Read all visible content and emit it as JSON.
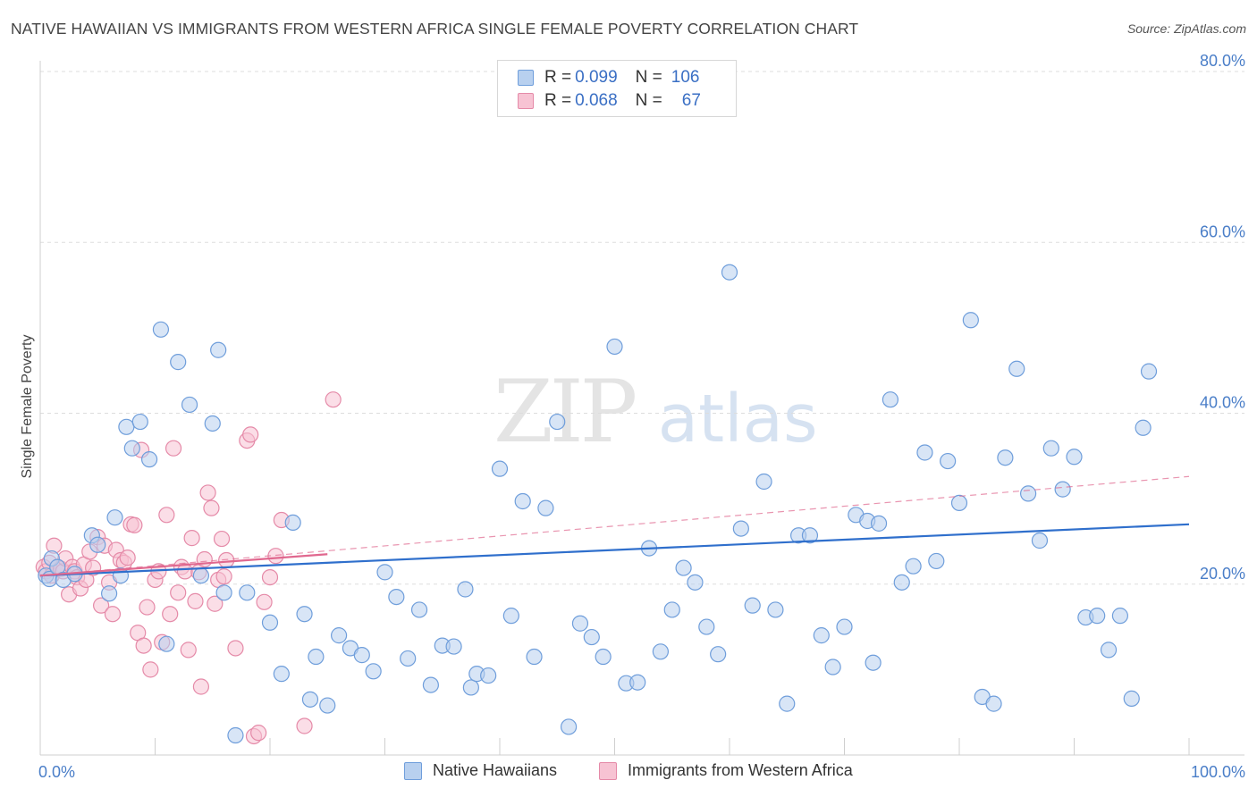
{
  "header": {
    "title": "NATIVE HAWAIIAN VS IMMIGRANTS FROM WESTERN AFRICA SINGLE FEMALE POVERTY CORRELATION CHART",
    "source": "Source: ZipAtlas.com"
  },
  "watermark": {
    "zip": "ZIP",
    "atlas": "atlas"
  },
  "legend_top": {
    "rows": [
      {
        "r_label": "R =",
        "r_value": "0.099",
        "n_label": "N =",
        "n_value": "106"
      },
      {
        "r_label": "R =",
        "r_value": "0.068",
        "n_label": "N =",
        "n_value": "67"
      }
    ]
  },
  "legend_bottom": {
    "items": [
      {
        "label": "Native Hawaiians"
      },
      {
        "label": "Immigrants from Western Africa"
      }
    ]
  },
  "colors": {
    "blue_fill": "#b8d0ef",
    "blue_stroke": "#6f9edb",
    "blue_line": "#2f6fcc",
    "pink_fill": "#f7c3d3",
    "pink_stroke": "#e58aa8",
    "pink_line": "#e0688f",
    "tick": "#4a7ec8",
    "grid": "#dddddd"
  },
  "chart_data": {
    "type": "scatter",
    "title": "NATIVE HAWAIIAN VS IMMIGRANTS FROM WESTERN AFRICA SINGLE FEMALE POVERTY CORRELATION CHART",
    "xlabel": "",
    "ylabel": "Single Female Poverty",
    "xlim": [
      0,
      100
    ],
    "ylim": [
      0,
      80
    ],
    "x_tick_labels": [
      "0.0%",
      "100.0%"
    ],
    "y_ticks": [
      20,
      40,
      60,
      80
    ],
    "y_tick_labels": [
      "20.0%",
      "40.0%",
      "60.0%",
      "80.0%"
    ],
    "grid": "horizontal dashed",
    "legend_placement": "top-center and bottom",
    "series": [
      {
        "name": "Native Hawaiians",
        "r": 0.099,
        "n": 106,
        "trend": {
          "x": [
            0,
            100
          ],
          "y": [
            21.0,
            27.0
          ],
          "style": "solid"
        },
        "points": [
          [
            0.5,
            21
          ],
          [
            0.8,
            20.6
          ],
          [
            1,
            23
          ],
          [
            1.5,
            22
          ],
          [
            2,
            20.5
          ],
          [
            3,
            21.2
          ],
          [
            4.5,
            25.7
          ],
          [
            5,
            24.6
          ],
          [
            6,
            18.9
          ],
          [
            6.5,
            27.8
          ],
          [
            7,
            21
          ],
          [
            7.5,
            38.4
          ],
          [
            8,
            35.9
          ],
          [
            8.7,
            39
          ],
          [
            9.5,
            34.6
          ],
          [
            10.5,
            49.8
          ],
          [
            11,
            13
          ],
          [
            12,
            46
          ],
          [
            13,
            41
          ],
          [
            14,
            21
          ],
          [
            15,
            38.8
          ],
          [
            15.5,
            47.4
          ],
          [
            16,
            19
          ],
          [
            17,
            2.3
          ],
          [
            18,
            19
          ],
          [
            20,
            15.5
          ],
          [
            21,
            9.5
          ],
          [
            22,
            27.2
          ],
          [
            23,
            16.5
          ],
          [
            23.5,
            6.5
          ],
          [
            24,
            11.5
          ],
          [
            25,
            5.8
          ],
          [
            26,
            14
          ],
          [
            27,
            12.5
          ],
          [
            28,
            11.7
          ],
          [
            29,
            9.8
          ],
          [
            30,
            21.4
          ],
          [
            31,
            18.5
          ],
          [
            32,
            11.3
          ],
          [
            33,
            17
          ],
          [
            34,
            8.2
          ],
          [
            35,
            12.8
          ],
          [
            36,
            12.7
          ],
          [
            37,
            19.4
          ],
          [
            37.5,
            7.9
          ],
          [
            38,
            9.5
          ],
          [
            39,
            9.3
          ],
          [
            40,
            33.5
          ],
          [
            41,
            16.3
          ],
          [
            42,
            29.7
          ],
          [
            43,
            11.5
          ],
          [
            44,
            28.9
          ],
          [
            45,
            39
          ],
          [
            46,
            3.3
          ],
          [
            47,
            15.4
          ],
          [
            48,
            13.8
          ],
          [
            49,
            11.5
          ],
          [
            50,
            47.8
          ],
          [
            51,
            8.4
          ],
          [
            52,
            8.5
          ],
          [
            53,
            24.2
          ],
          [
            54,
            12.1
          ],
          [
            55,
            17
          ],
          [
            56,
            21.9
          ],
          [
            57,
            20.2
          ],
          [
            58,
            15
          ],
          [
            59,
            11.8
          ],
          [
            60,
            56.5
          ],
          [
            61,
            26.5
          ],
          [
            62,
            17.5
          ],
          [
            63,
            32
          ],
          [
            64,
            17
          ],
          [
            65,
            6
          ],
          [
            66,
            25.7
          ],
          [
            67,
            25.7
          ],
          [
            68,
            14
          ],
          [
            69,
            10.3
          ],
          [
            70,
            15
          ],
          [
            71,
            28.1
          ],
          [
            72,
            27.4
          ],
          [
            72.5,
            10.8
          ],
          [
            73,
            27.1
          ],
          [
            74,
            41.6
          ],
          [
            75,
            20.2
          ],
          [
            76,
            22.1
          ],
          [
            77,
            35.4
          ],
          [
            78,
            22.7
          ],
          [
            79,
            34.4
          ],
          [
            80,
            29.5
          ],
          [
            81,
            50.9
          ],
          [
            82,
            6.8
          ],
          [
            83,
            6
          ],
          [
            84,
            34.8
          ],
          [
            85,
            45.2
          ],
          [
            86,
            30.6
          ],
          [
            87,
            25.1
          ],
          [
            88,
            35.9
          ],
          [
            89,
            31.1
          ],
          [
            90,
            34.9
          ],
          [
            91,
            16.1
          ],
          [
            92,
            16.3
          ],
          [
            93,
            12.3
          ],
          [
            94,
            16.3
          ],
          [
            95,
            6.6
          ],
          [
            96,
            38.3
          ],
          [
            96.5,
            44.9
          ]
        ]
      },
      {
        "name": "Immigrants from Western Africa",
        "r": 0.068,
        "n": 67,
        "trend_solid": {
          "x": [
            0,
            25
          ],
          "y": [
            21.0,
            23.5
          ]
        },
        "trend_dashed": {
          "x": [
            0,
            100
          ],
          "y": [
            21.0,
            32.6
          ]
        },
        "points": [
          [
            0.3,
            22
          ],
          [
            0.5,
            21.5
          ],
          [
            0.8,
            22.5
          ],
          [
            1,
            21
          ],
          [
            1.2,
            24.5
          ],
          [
            1.5,
            22
          ],
          [
            1.8,
            21.8
          ],
          [
            2,
            21.5
          ],
          [
            2.2,
            23
          ],
          [
            2.5,
            18.8
          ],
          [
            2.8,
            22
          ],
          [
            3,
            21.5
          ],
          [
            3.2,
            20.8
          ],
          [
            3.5,
            19.5
          ],
          [
            3.8,
            22.3
          ],
          [
            4,
            20.5
          ],
          [
            4.3,
            23.8
          ],
          [
            4.6,
            21.9
          ],
          [
            5,
            25.5
          ],
          [
            5.3,
            17.5
          ],
          [
            5.6,
            24.5
          ],
          [
            6,
            20.2
          ],
          [
            6.3,
            16.5
          ],
          [
            6.6,
            24
          ],
          [
            7,
            22.8
          ],
          [
            7.3,
            22.5
          ],
          [
            7.6,
            23.1
          ],
          [
            7.9,
            27
          ],
          [
            8.2,
            26.9
          ],
          [
            8.5,
            14.3
          ],
          [
            8.8,
            35.7
          ],
          [
            9,
            12.8
          ],
          [
            9.3,
            17.3
          ],
          [
            9.6,
            10
          ],
          [
            10,
            20.5
          ],
          [
            10.3,
            21.5
          ],
          [
            10.6,
            13.2
          ],
          [
            11,
            28.1
          ],
          [
            11.3,
            16.5
          ],
          [
            11.6,
            35.9
          ],
          [
            12,
            19
          ],
          [
            12.3,
            22
          ],
          [
            12.6,
            21.5
          ],
          [
            12.9,
            12.3
          ],
          [
            13.2,
            25.4
          ],
          [
            13.5,
            18
          ],
          [
            13.8,
            21.4
          ],
          [
            14,
            8
          ],
          [
            14.3,
            22.9
          ],
          [
            14.6,
            30.7
          ],
          [
            14.9,
            28.9
          ],
          [
            15.2,
            17.7
          ],
          [
            15.5,
            20.5
          ],
          [
            15.8,
            25.3
          ],
          [
            16,
            20.9
          ],
          [
            16.2,
            22.8
          ],
          [
            17,
            12.5
          ],
          [
            18,
            36.8
          ],
          [
            18.3,
            37.5
          ],
          [
            18.6,
            2.2
          ],
          [
            19,
            2.6
          ],
          [
            19.5,
            17.9
          ],
          [
            20,
            20.8
          ],
          [
            20.5,
            23.3
          ],
          [
            21,
            27.5
          ],
          [
            23,
            3.4
          ],
          [
            25.5,
            41.6
          ]
        ]
      }
    ]
  }
}
